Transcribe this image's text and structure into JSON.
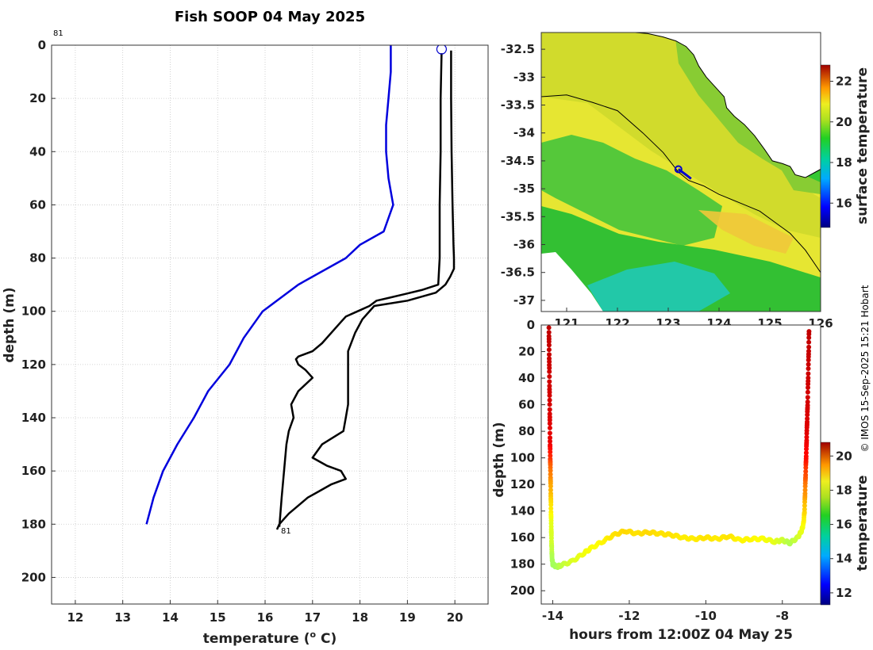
{
  "figure": {
    "title": "Fish SOOP 04 May 2025",
    "copyright": "© IMOS 15-Sep-2025 15:21 Hobart",
    "cast_label_top": "81",
    "cast_label_bottom": "81"
  },
  "colors": {
    "reference": "#0000dd",
    "profile": "#000000",
    "grid": "#c8c8c8",
    "marker": "#0000cc"
  },
  "chart_data": [
    {
      "id": "profile",
      "type": "line",
      "title": "Fish SOOP 04 May 2025",
      "xlabel": "temperature (o C)",
      "xlabel_base": "temperature (",
      "xlabel_sup": "o",
      "xlabel_end": " C)",
      "ylabel": "depth (m)",
      "xlim": [
        11.5,
        20.7
      ],
      "ylim": [
        0,
        210
      ],
      "y_reversed": true,
      "grid": true,
      "xticks": [
        12,
        13,
        14,
        15,
        16,
        17,
        18,
        19,
        20
      ],
      "yticks": [
        0,
        20,
        40,
        60,
        80,
        100,
        120,
        140,
        160,
        180,
        200
      ],
      "series": [
        {
          "name": "reference profile",
          "color": "#0000dd",
          "x": [
            18.65,
            18.65,
            18.6,
            18.55,
            18.55,
            18.6,
            18.7,
            18.5,
            18.0,
            17.7,
            16.7,
            15.95,
            15.55,
            15.25,
            14.8,
            14.5,
            14.15,
            13.85,
            13.65,
            13.5
          ],
          "y": [
            0,
            10,
            20,
            30,
            40,
            50,
            60,
            70,
            75,
            80,
            90,
            100,
            110,
            120,
            130,
            140,
            150,
            160,
            170,
            180
          ]
        },
        {
          "name": "downcast",
          "color": "#000000",
          "x": [
            19.92,
            19.92,
            19.93,
            19.95,
            19.97,
            19.98,
            19.98,
            19.9,
            19.8,
            19.6,
            19.0,
            18.3,
            18.05,
            17.9,
            17.75,
            17.75,
            17.75,
            17.7,
            17.65,
            17.2,
            17.0,
            17.3,
            17.6,
            17.7,
            17.4,
            17.1,
            16.9,
            16.7,
            16.5,
            16.4,
            16.3,
            16.25
          ],
          "y": [
            2,
            20,
            40,
            60,
            75,
            80,
            84,
            87,
            90,
            93,
            96,
            98,
            103,
            108,
            115,
            125,
            135,
            140,
            145,
            150,
            155,
            158,
            160,
            163,
            165,
            168,
            170,
            173,
            176,
            178,
            180,
            182
          ]
        },
        {
          "name": "upcast",
          "color": "#000000",
          "x": [
            16.3,
            16.35,
            16.4,
            16.45,
            16.5,
            16.6,
            16.55,
            16.7,
            17.0,
            16.85,
            16.7,
            16.65,
            16.7,
            16.85,
            17.0,
            17.2,
            17.4,
            17.6,
            17.7,
            17.95,
            18.2,
            18.35,
            18.6,
            19.3,
            19.65,
            19.68,
            19.68,
            19.7,
            19.7,
            19.72
          ],
          "y": [
            181,
            170,
            160,
            150,
            145,
            140,
            135,
            130,
            125,
            122,
            120,
            118,
            117,
            116,
            115,
            112,
            108,
            104,
            102,
            100,
            98,
            96,
            95,
            92,
            90,
            80,
            60,
            40,
            20,
            3
          ]
        }
      ],
      "markers": [
        {
          "name": "surface position",
          "x": 19.72,
          "y": 1.5
        }
      ]
    },
    {
      "id": "map",
      "type": "heatmap",
      "colorbar_label": "surface temperature",
      "colorbar_ticks": [
        16,
        18,
        20,
        22
      ],
      "colorbar_range": [
        14.8,
        22.8
      ],
      "xlim": [
        120.5,
        126.0
      ],
      "ylim": [
        -37.2,
        -32.2
      ],
      "xticks": [
        121,
        122,
        123,
        124,
        125,
        126
      ],
      "yticks": [
        -32.5,
        -33,
        -33.5,
        -34,
        -34.5,
        -35,
        -35.5,
        -36,
        -36.5,
        -37
      ],
      "ytick_labels": [
        "-32.5",
        "-33",
        "-33.5",
        "-34",
        "-34.5",
        "-35",
        "-35.5",
        "-36",
        "-36.5",
        "-37"
      ],
      "vessel_position": {
        "lon": 123.2,
        "lat": -34.65
      },
      "track": {
        "lon": [
          123.2,
          123.35,
          123.45
        ],
        "lat": [
          -34.65,
          -34.75,
          -34.82
        ]
      },
      "isobath": {
        "lon": [
          120.5,
          121.0,
          121.5,
          122.0,
          122.5,
          122.9,
          123.2,
          123.4,
          123.7,
          124.0,
          124.4,
          124.8,
          125.1,
          125.4,
          125.7,
          126.0
        ],
        "lat": [
          -33.35,
          -33.32,
          -33.45,
          -33.6,
          -34.0,
          -34.35,
          -34.7,
          -34.85,
          -34.95,
          -35.1,
          -35.25,
          -35.4,
          -35.6,
          -35.8,
          -36.1,
          -36.5
        ]
      },
      "coastline": {
        "lon": [
          122.35,
          122.6,
          122.9,
          123.15,
          123.35,
          123.5,
          123.6,
          123.75,
          123.95,
          124.1,
          124.15,
          124.3,
          124.5,
          124.7,
          124.9,
          125.05,
          125.25,
          125.4,
          125.5,
          125.7,
          125.9,
          126.0
        ],
        "lat": [
          -32.2,
          -32.22,
          -32.28,
          -32.35,
          -32.45,
          -32.6,
          -32.8,
          -33.0,
          -33.2,
          -33.35,
          -33.55,
          -33.7,
          -33.85,
          -34.05,
          -34.3,
          -34.5,
          -34.55,
          -34.6,
          -34.75,
          -34.8,
          -34.7,
          -34.65
        ]
      }
    },
    {
      "id": "timeseries",
      "type": "scatter",
      "xlabel": "hours from 12:00Z 04 May 25",
      "ylabel": "depth (m)",
      "colorbar_label": "temperature",
      "colorbar_ticks": [
        12,
        14,
        16,
        18,
        20
      ],
      "colorbar_range": [
        11.3,
        20.8
      ],
      "xlim": [
        -14.3,
        -7.0
      ],
      "ylim": [
        0,
        210
      ],
      "y_reversed": true,
      "xticks": [
        -14,
        -12,
        -10,
        -8
      ],
      "yticks": [
        0,
        20,
        40,
        60,
        80,
        100,
        120,
        140,
        160,
        180,
        200
      ],
      "hours": [
        -14.1,
        -14.09,
        -14.08,
        -14.07,
        -14.06,
        -14.05,
        -14.04,
        -14.03,
        -14.02,
        -14.0,
        -13.9,
        -13.8,
        -13.5,
        -13.2,
        -13.0,
        -12.7,
        -12.4,
        -12.1,
        -11.8,
        -11.5,
        -11.2,
        -10.9,
        -10.6,
        -10.3,
        -10.0,
        -9.7,
        -9.4,
        -9.1,
        -8.8,
        -8.5,
        -8.2,
        -8.0,
        -7.8,
        -7.6,
        -7.5,
        -7.45,
        -7.42,
        -7.4,
        -7.38,
        -7.36,
        -7.34,
        -7.32,
        -7.3
      ],
      "depth": [
        2,
        30,
        60,
        90,
        110,
        130,
        150,
        165,
        175,
        180,
        182,
        181,
        178,
        172,
        168,
        163,
        158,
        155,
        157,
        156,
        157,
        158,
        160,
        161,
        160,
        161,
        159,
        162,
        161,
        161,
        163,
        162,
        164,
        160,
        155,
        150,
        140,
        120,
        100,
        80,
        60,
        30,
        2
      ],
      "temperature": [
        20.2,
        20.1,
        20.0,
        19.8,
        18.5,
        17.7,
        17.0,
        16.8,
        16.5,
        16.4,
        16.4,
        16.6,
        16.9,
        17.1,
        17.2,
        17.3,
        17.5,
        17.6,
        17.5,
        17.6,
        17.5,
        17.5,
        17.4,
        17.4,
        17.5,
        17.4,
        17.5,
        17.3,
        17.3,
        17.2,
        17.0,
        16.8,
        16.5,
        16.8,
        17.0,
        17.2,
        17.6,
        18.5,
        19.5,
        19.9,
        20.0,
        20.1,
        20.2
      ]
    }
  ]
}
